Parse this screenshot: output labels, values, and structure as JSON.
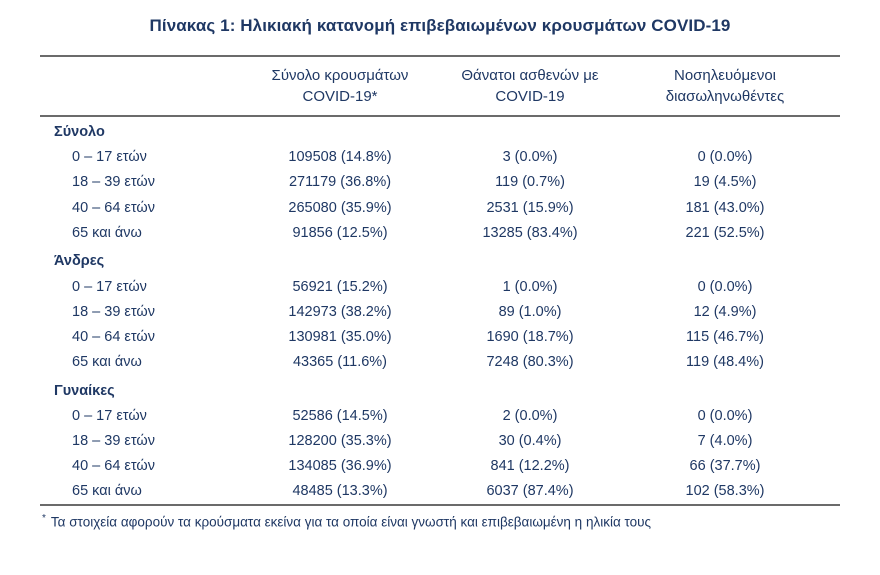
{
  "page": {
    "title": "Πίνακας 1: Ηλικιακή κατανομή επιβεβαιωμένων κρουσμάτων COVID-19"
  },
  "colors": {
    "text": "#1f3864",
    "border": "#6b6b6b",
    "background": "#ffffff"
  },
  "table": {
    "headers": [
      {
        "line1": "Σύνολο κρουσμάτων",
        "line2": "COVID-19*"
      },
      {
        "line1": "Θάνατοι ασθενών με",
        "line2": "COVID-19"
      },
      {
        "line1": "Νοσηλευόμενοι",
        "line2": "διασωληνωθέντες"
      }
    ],
    "sections": [
      {
        "label": "Σύνολο",
        "rows": [
          {
            "label": "0 – 17 ετών",
            "cases": "109508 (14.8%)",
            "deaths": "3 (0.0%)",
            "intubated": "0 (0.0%)"
          },
          {
            "label": "18 – 39 ετών",
            "cases": "271179 (36.8%)",
            "deaths": "119 (0.7%)",
            "intubated": "19 (4.5%)"
          },
          {
            "label": "40 – 64 ετών",
            "cases": "265080 (35.9%)",
            "deaths": "2531 (15.9%)",
            "intubated": "181 (43.0%)"
          },
          {
            "label": "65 και άνω",
            "cases": "91856 (12.5%)",
            "deaths": "13285 (83.4%)",
            "intubated": "221 (52.5%)"
          }
        ]
      },
      {
        "label": "Άνδρες",
        "rows": [
          {
            "label": "0 – 17 ετών",
            "cases": "56921 (15.2%)",
            "deaths": "1 (0.0%)",
            "intubated": "0 (0.0%)"
          },
          {
            "label": "18 – 39 ετών",
            "cases": "142973 (38.2%)",
            "deaths": "89 (1.0%)",
            "intubated": "12 (4.9%)"
          },
          {
            "label": "40 – 64 ετών",
            "cases": "130981 (35.0%)",
            "deaths": "1690 (18.7%)",
            "intubated": "115 (46.7%)"
          },
          {
            "label": "65 και άνω",
            "cases": "43365 (11.6%)",
            "deaths": "7248 (80.3%)",
            "intubated": "119 (48.4%)"
          }
        ]
      },
      {
        "label": "Γυναίκες",
        "rows": [
          {
            "label": "0 – 17 ετών",
            "cases": "52586 (14.5%)",
            "deaths": "2 (0.0%)",
            "intubated": "0 (0.0%)"
          },
          {
            "label": "18 – 39 ετών",
            "cases": "128200 (35.3%)",
            "deaths": "30 (0.4%)",
            "intubated": "7 (4.0%)"
          },
          {
            "label": "40 – 64 ετών",
            "cases": "134085 (36.9%)",
            "deaths": "841 (12.2%)",
            "intubated": "66 (37.7%)"
          },
          {
            "label": "65 και άνω",
            "cases": "48485 (13.3%)",
            "deaths": "6037 (87.4%)",
            "intubated": "102 (58.3%)"
          }
        ]
      }
    ],
    "footnote": {
      "marker": "*",
      "text": "Τα στοιχεία αφορούν τα κρούσματα εκείνα για τα οποία είναι γνωστή και επιβεβαιωμένη η ηλικία τους"
    }
  }
}
